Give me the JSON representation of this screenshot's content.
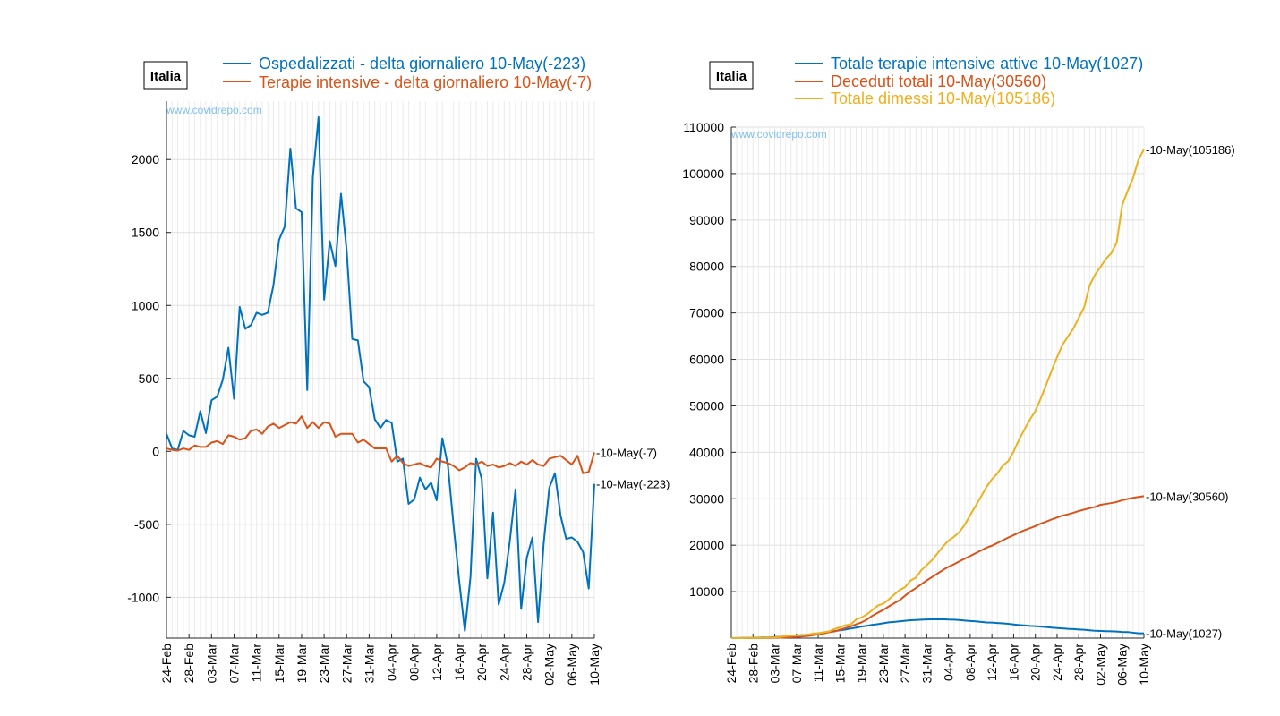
{
  "colors": {
    "blue": "#0072bd",
    "orange": "#d95319",
    "yellow": "#edb120",
    "watermark": "#7fbfef"
  },
  "dates": [
    "24-Feb",
    "25-Feb",
    "26-Feb",
    "27-Feb",
    "28-Feb",
    "29-Feb",
    "01-Mar",
    "02-Mar",
    "03-Mar",
    "04-Mar",
    "05-Mar",
    "06-Mar",
    "07-Mar",
    "08-Mar",
    "09-Mar",
    "10-Mar",
    "11-Mar",
    "12-Mar",
    "13-Mar",
    "14-Mar",
    "15-Mar",
    "16-Mar",
    "17-Mar",
    "18-Mar",
    "19-Mar",
    "20-Mar",
    "21-Mar",
    "22-Mar",
    "23-Mar",
    "24-Mar",
    "25-Mar",
    "26-Mar",
    "27-Mar",
    "28-Mar",
    "29-Mar",
    "30-Mar",
    "31-Mar",
    "01-Apr",
    "02-Apr",
    "03-Apr",
    "04-Apr",
    "05-Apr",
    "06-Apr",
    "07-Apr",
    "08-Apr",
    "09-Apr",
    "10-Apr",
    "11-Apr",
    "12-Apr",
    "13-Apr",
    "14-Apr",
    "15-Apr",
    "16-Apr",
    "17-Apr",
    "18-Apr",
    "19-Apr",
    "20-Apr",
    "21-Apr",
    "22-Apr",
    "23-Apr",
    "24-Apr",
    "25-Apr",
    "26-Apr",
    "27-Apr",
    "28-Apr",
    "29-Apr",
    "30-Apr",
    "01-May",
    "02-May",
    "03-May",
    "04-May",
    "05-May",
    "06-May",
    "07-May",
    "08-May",
    "09-May",
    "10-May"
  ],
  "chart_data": [
    {
      "type": "line",
      "region_label": "Italia",
      "watermark": "www.covidrepo.com",
      "x_tick_labels": [
        "24-Feb",
        "28-Feb",
        "03-Mar",
        "07-Mar",
        "11-Mar",
        "15-Mar",
        "19-Mar",
        "23-Mar",
        "27-Mar",
        "31-Mar",
        "04-Apr",
        "08-Apr",
        "12-Apr",
        "16-Apr",
        "20-Apr",
        "24-Apr",
        "28-Apr",
        "02-May",
        "06-May",
        "10-May"
      ],
      "y_ticks": [
        -1000,
        -500,
        0,
        500,
        1000,
        1500,
        2000
      ],
      "ylim": [
        -1280,
        2400
      ],
      "grid": true,
      "legend_position": "top",
      "series": [
        {
          "name": "Ospedalizzati - delta giornaliero 10-May(-223)",
          "color": "#0072bd",
          "end_label": "10-May(-223)",
          "values": [
            120,
            20,
            10,
            140,
            110,
            100,
            275,
            125,
            350,
            375,
            490,
            710,
            360,
            990,
            840,
            865,
            950,
            935,
            950,
            1140,
            1450,
            1540,
            2075,
            1665,
            1640,
            420,
            1880,
            2290,
            1040,
            1440,
            1270,
            1765,
            1380,
            770,
            760,
            480,
            440,
            220,
            160,
            215,
            195,
            -70,
            -50,
            -360,
            -330,
            -180,
            -260,
            -215,
            -335,
            90,
            -100,
            -510,
            -890,
            -1230,
            -860,
            -50,
            -190,
            -870,
            -420,
            -1050,
            -900,
            -610,
            -260,
            -1080,
            -730,
            -590,
            -1170,
            -630,
            -250,
            -150,
            -440,
            -600,
            -590,
            -620,
            -690,
            -940,
            -223
          ]
        },
        {
          "name": "Terapie intensive - delta giornaliero 10-May(-7)",
          "color": "#d95319",
          "end_label": "10-May(-7)",
          "values": [
            20,
            10,
            5,
            20,
            10,
            40,
            30,
            30,
            60,
            70,
            50,
            110,
            100,
            80,
            90,
            140,
            150,
            120,
            170,
            190,
            160,
            180,
            200,
            190,
            240,
            160,
            200,
            160,
            200,
            190,
            100,
            120,
            120,
            120,
            60,
            80,
            50,
            20,
            20,
            20,
            -70,
            -30,
            -80,
            -100,
            -90,
            -80,
            -100,
            -110,
            -50,
            -70,
            -80,
            -100,
            -130,
            -110,
            -80,
            -90,
            -70,
            -100,
            -90,
            -110,
            -100,
            -80,
            -100,
            -70,
            -90,
            -60,
            -90,
            -100,
            -50,
            -40,
            -30,
            -60,
            -90,
            -30,
            -150,
            -140,
            -7
          ]
        }
      ]
    },
    {
      "type": "line",
      "region_label": "Italia",
      "watermark": "www.covidrepo.com",
      "x_tick_labels": [
        "24-Feb",
        "28-Feb",
        "03-Mar",
        "07-Mar",
        "11-Mar",
        "15-Mar",
        "19-Mar",
        "23-Mar",
        "27-Mar",
        "31-Mar",
        "04-Apr",
        "08-Apr",
        "12-Apr",
        "16-Apr",
        "20-Apr",
        "24-Apr",
        "28-Apr",
        "02-May",
        "06-May",
        "10-May"
      ],
      "y_ticks": [
        10000,
        20000,
        30000,
        40000,
        50000,
        60000,
        70000,
        80000,
        90000,
        100000,
        110000
      ],
      "ylim": [
        0,
        110000
      ],
      "grid": true,
      "legend_position": "top",
      "series": [
        {
          "name": "Totale terapie intensive attive 10-May(1027)",
          "color": "#0072bd",
          "end_label": "10-May(1027)",
          "values": [
            27,
            35,
            36,
            56,
            64,
            105,
            140,
            166,
            229,
            295,
            351,
            462,
            567,
            650,
            733,
            877,
            1028,
            1153,
            1328,
            1518,
            1672,
            1851,
            2060,
            2257,
            2498,
            2655,
            2857,
            3009,
            3204,
            3396,
            3489,
            3612,
            3732,
            3856,
            3906,
            3981,
            4023,
            4035,
            4053,
            4068,
            3994,
            3977,
            3898,
            3792,
            3693,
            3605,
            3497,
            3381,
            3343,
            3260,
            3186,
            3079,
            2936,
            2812,
            2733,
            2635,
            2573,
            2471,
            2384,
            2267,
            2173,
            2102,
            2009,
            1956,
            1863,
            1795,
            1694,
            1578,
            1539,
            1501,
            1479,
            1427,
            1333,
            1311,
            1168,
            1034,
            1027
          ]
        },
        {
          "name": "Deceduti totali 10-May(30560)",
          "color": "#d95319",
          "end_label": "10-May(30560)",
          "values": [
            7,
            10,
            12,
            17,
            21,
            29,
            34,
            52,
            79,
            107,
            148,
            197,
            233,
            366,
            463,
            631,
            827,
            1016,
            1266,
            1441,
            1809,
            2158,
            2503,
            2978,
            3405,
            4032,
            4825,
            5476,
            6077,
            6820,
            7503,
            8165,
            9134,
            10023,
            10779,
            11591,
            12428,
            13155,
            13915,
            14681,
            15362,
            15887,
            16523,
            17127,
            17669,
            18279,
            18849,
            19468,
            19899,
            20465,
            21067,
            21645,
            22170,
            22745,
            23227,
            23660,
            24114,
            24648,
            25085,
            25549,
            25969,
            26384,
            26644,
            26977,
            27359,
            27682,
            27967,
            28236,
            28710,
            28884,
            29079,
            29315,
            29684,
            29958,
            30201,
            30395,
            30560
          ]
        },
        {
          "name": "Totale dimessi 10-May(105186)",
          "color": "#edb120",
          "end_label": "10-May(105186)",
          "values": [
            1,
            1,
            3,
            45,
            46,
            46,
            83,
            149,
            160,
            276,
            414,
            523,
            589,
            622,
            724,
            1004,
            1045,
            1258,
            1439,
            1966,
            2335,
            2749,
            2941,
            4025,
            4440,
            5129,
            6072,
            7024,
            7432,
            8326,
            9362,
            10361,
            10950,
            12384,
            13030,
            14620,
            15729,
            16847,
            18278,
            19758,
            20996,
            21815,
            22837,
            24392,
            26491,
            28470,
            30455,
            32534,
            34211,
            35435,
            37130,
            38092,
            40164,
            42727,
            44927,
            47055,
            48877,
            51600,
            54543,
            57576,
            60498,
            63120,
            64928,
            66624,
            68941,
            71252,
            75945,
            78249,
            79914,
            81654,
            82879,
            85231,
            93245,
            96276,
            99023,
            103031,
            105186
          ]
        }
      ]
    }
  ]
}
